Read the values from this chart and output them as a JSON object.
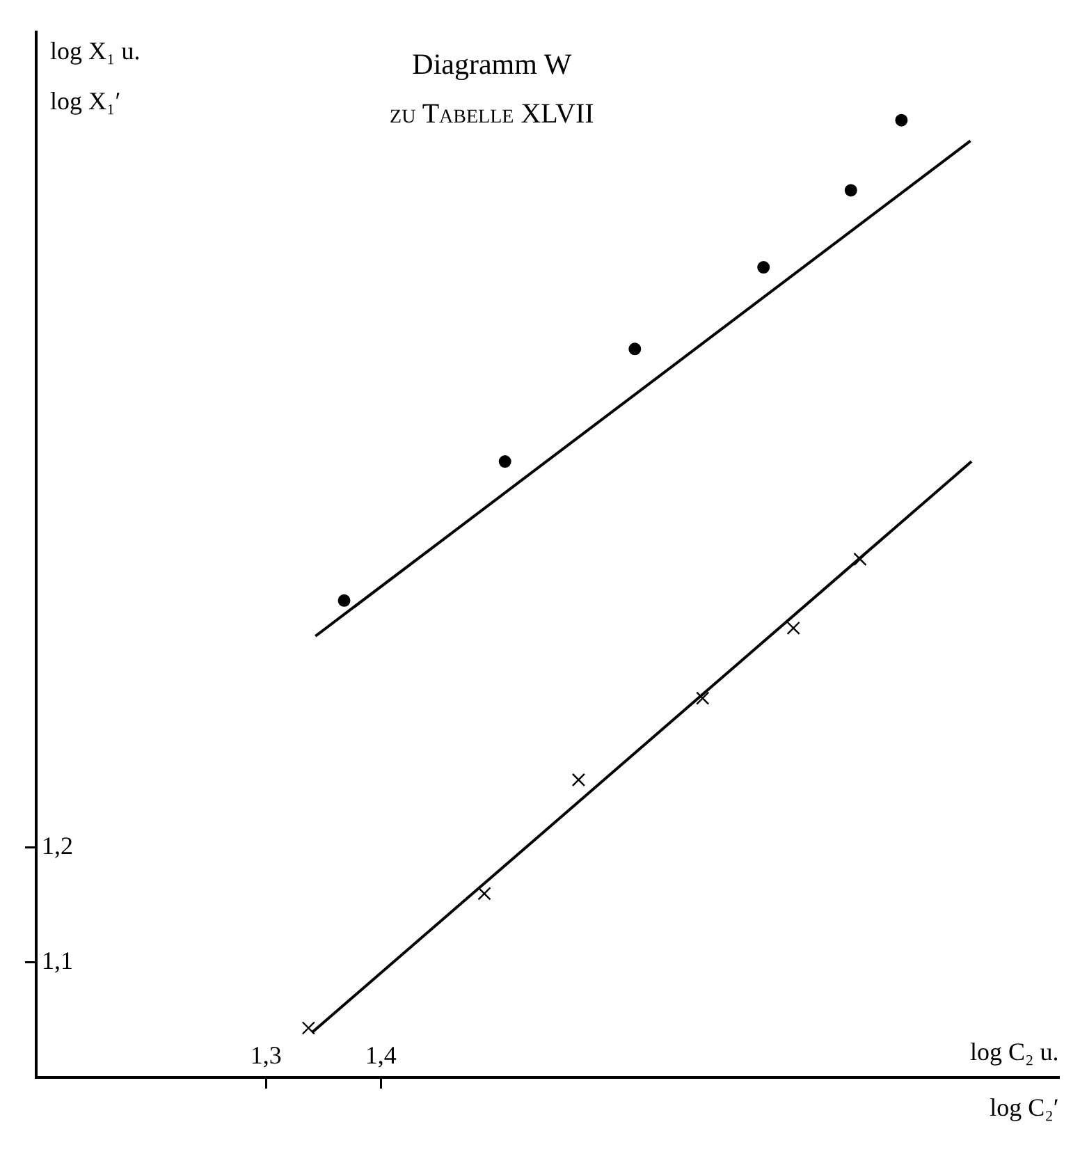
{
  "chart_data": {
    "type": "scatter",
    "title": "Diagramm W",
    "subtitle": "zu Tabelle XLVII",
    "xlabel": "log C₂ u.\nlog C₂′",
    "ylabel": "log X₁ u.\nlog X₁′",
    "series": [
      {
        "marker": "circle",
        "color": "#000000",
        "x": [
          1.368,
          1.508,
          1.621,
          1.733,
          1.809,
          1.853
        ],
        "values": [
          1.415,
          1.536,
          1.634,
          1.705,
          1.772,
          1.833
        ]
      },
      {
        "type": "line",
        "marker": "none",
        "color": "#000000",
        "x": [
          1.343,
          1.913
        ],
        "values": [
          1.384,
          1.815
        ]
      },
      {
        "marker": "cross",
        "color": "#000000",
        "x": [
          1.337,
          1.49,
          1.572,
          1.68,
          1.759,
          1.817
        ],
        "values": [
          1.043,
          1.16,
          1.259,
          1.33,
          1.391,
          1.451
        ]
      },
      {
        "type": "line",
        "marker": "none",
        "color": "#000000",
        "x": [
          1.34,
          1.914
        ],
        "values": [
          1.039,
          1.536
        ]
      }
    ],
    "xlim": [
      1.1,
      1.99
    ],
    "ylim": [
      1.0,
      1.91
    ],
    "xticks": [
      {
        "value": 1.3,
        "label": "1,3"
      },
      {
        "value": 1.4,
        "label": "1,4"
      }
    ],
    "yticks": [
      {
        "value": 1.1,
        "label": "1,1"
      },
      {
        "value": 1.2,
        "label": "1,2"
      }
    ],
    "grid": false,
    "legend": false
  }
}
